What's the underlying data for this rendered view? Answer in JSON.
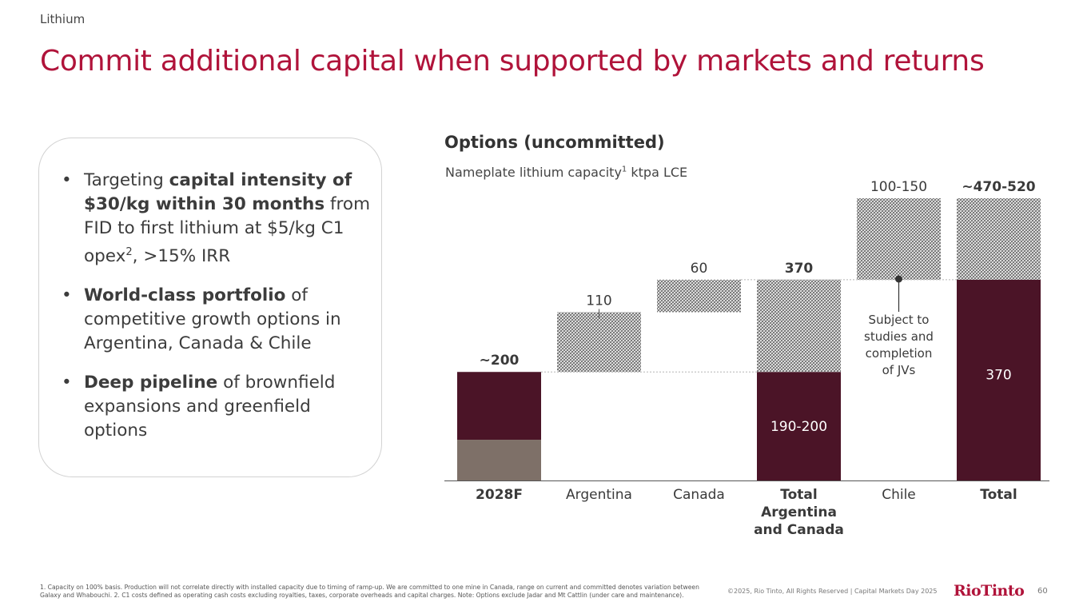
{
  "section": "Lithium",
  "title": "Commit additional capital when supported by markets and returns",
  "bullets": [
    {
      "pre": "Targeting ",
      "bold": "capital intensity of $30/kg within 30 months",
      "post": " from FID to first lithium at $5/kg C1 opex",
      "sup": "2",
      "post2": ", >15% IRR"
    },
    {
      "pre": "",
      "bold": "World-class portfolio",
      "post": " of competitive growth options in Argentina, Canada & Chile",
      "sup": "",
      "post2": ""
    },
    {
      "pre": "",
      "bold": "Deep pipeline",
      "post": " of brownfield expansions and greenfield options",
      "sup": "",
      "post2": ""
    }
  ],
  "chart_title": "Options (uncommitted)",
  "chart_subtitle": {
    "pre": "Nameplate lithium capacity",
    "sup": "1",
    "post": " ktpa LCE"
  },
  "chart_data": {
    "type": "bar",
    "subtype": "waterfall",
    "unit": "ktpa LCE",
    "ylim": [
      0,
      520
    ],
    "categories": [
      "2028F",
      "Argentina",
      "Canada",
      "Total Argentina and Canada",
      "Chile",
      "Total"
    ],
    "category_labels": [
      {
        "lines": [
          "2028F"
        ],
        "bold": true
      },
      {
        "lines": [
          "Argentina"
        ],
        "bold": false
      },
      {
        "lines": [
          "Canada"
        ],
        "bold": false
      },
      {
        "lines": [
          "Total",
          "Argentina",
          "and Canada"
        ],
        "bold": true
      },
      {
        "lines": [
          "Chile"
        ],
        "bold": false
      },
      {
        "lines": [
          "Total"
        ],
        "bold": true
      }
    ],
    "segments": [
      {
        "category": 0,
        "from": 0,
        "to": 75,
        "style": "grey"
      },
      {
        "category": 0,
        "from": 75,
        "to": 200,
        "style": "solid"
      },
      {
        "category": 1,
        "from": 200,
        "to": 310,
        "style": "hatched"
      },
      {
        "category": 2,
        "from": 310,
        "to": 370,
        "style": "hatched"
      },
      {
        "category": 3,
        "from": 0,
        "to": 200,
        "style": "solid"
      },
      {
        "category": 3,
        "from": 200,
        "to": 370,
        "style": "hatched"
      },
      {
        "category": 4,
        "from": 370,
        "to": 520,
        "style": "hatched"
      },
      {
        "category": 5,
        "from": 0,
        "to": 370,
        "style": "solid"
      },
      {
        "category": 5,
        "from": 370,
        "to": 520,
        "style": "hatched"
      }
    ],
    "top_labels": [
      {
        "category": 0,
        "text": "~200",
        "bold": true,
        "at": 200
      },
      {
        "category": 1,
        "text": "110",
        "bold": false,
        "at": 310
      },
      {
        "category": 2,
        "text": "60",
        "bold": false,
        "at": 370
      },
      {
        "category": 3,
        "text": "370",
        "bold": true,
        "at": 370
      },
      {
        "category": 4,
        "text": "100-150",
        "bold": false,
        "at": 520
      },
      {
        "category": 5,
        "text": "~470-520",
        "bold": true,
        "at": 520
      }
    ],
    "inside_labels": [
      {
        "category": 3,
        "text": "190-200",
        "at": 100
      },
      {
        "category": 5,
        "text": "370",
        "at": 195
      }
    ],
    "annotation": {
      "category": 4,
      "lines": [
        "Subject to",
        "studies and",
        "completion",
        "of JVs"
      ]
    },
    "connectors": [
      200,
      310,
      370
    ],
    "colors": {
      "solid": "#4b1427",
      "grey": "#7e7068",
      "hatch": "#7a7a7a",
      "axis": "#555555"
    }
  },
  "footnote": "1. Capacity on 100% basis. Production will not correlate directly with installed capacity due to timing of ramp-up. We are committed to one mine in Canada, range on current and committed denotes variation between Galaxy and Whabouchi. 2. C1 costs defined as operating cash costs excluding royalties, taxes, corporate overheads and capital charges. Note: Options exclude Jadar and Mt Cattlin (under care and maintenance).",
  "copyright": "©2025, Rio Tinto, All Rights Reserved  |  Capital Markets Day 2025",
  "logo": "RioTinto",
  "page_number": "60"
}
